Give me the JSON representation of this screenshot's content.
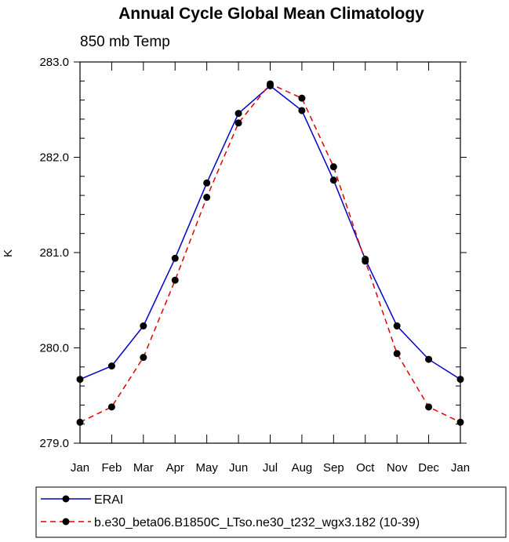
{
  "chart_data": {
    "type": "line",
    "title": "Annual Cycle Global Mean Climatology",
    "subtitle": "850 mb Temp",
    "xlabel": "",
    "ylabel": "K",
    "categories": [
      "Jan",
      "Feb",
      "Mar",
      "Apr",
      "May",
      "Jun",
      "Jul",
      "Aug",
      "Sep",
      "Oct",
      "Nov",
      "Dec",
      "Jan"
    ],
    "ylim": [
      279.0,
      283.0
    ],
    "yticks": [
      "279.0",
      "280.0",
      "281.0",
      "282.0",
      "283.0"
    ],
    "grid": false,
    "legend_position": "bottom",
    "series": [
      {
        "name": "ERAI",
        "color": "#0000cc",
        "dash": "solid",
        "values": [
          279.67,
          279.81,
          280.23,
          280.94,
          281.73,
          282.46,
          282.75,
          282.49,
          281.76,
          280.93,
          280.23,
          279.88,
          279.67
        ]
      },
      {
        "name": "b.e30_beta06.B1850C_LTso.ne30_t232_wgx3.182 (10-39)",
        "color": "#e00000",
        "dash": "dashed",
        "values": [
          279.22,
          279.38,
          279.9,
          280.71,
          281.58,
          282.36,
          282.77,
          282.62,
          281.9,
          280.91,
          279.94,
          279.38,
          279.22
        ]
      }
    ]
  }
}
